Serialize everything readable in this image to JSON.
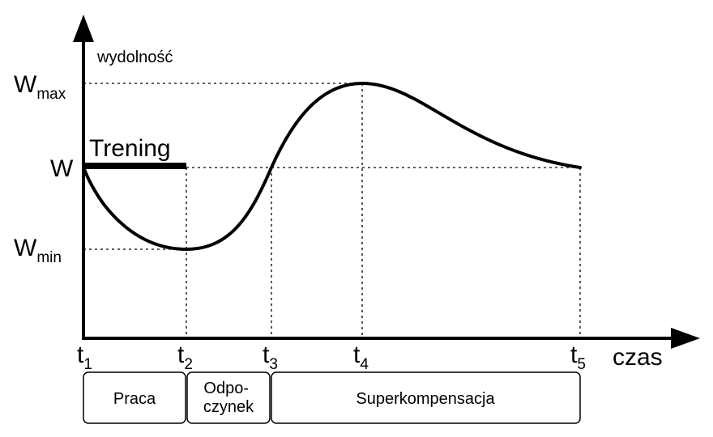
{
  "chart_data": {
    "type": "line",
    "ylabel": "wydolność",
    "xlabel": "czas",
    "y_levels": [
      {
        "key": "W",
        "sub": "max"
      },
      {
        "key": "W",
        "sub": ""
      },
      {
        "key": "W",
        "sub": "min"
      }
    ],
    "x_ticks": [
      {
        "key": "t",
        "sub": "1"
      },
      {
        "key": "t",
        "sub": "2"
      },
      {
        "key": "t",
        "sub": "3"
      },
      {
        "key": "t",
        "sub": "4"
      },
      {
        "key": "t",
        "sub": "5"
      }
    ],
    "training_label": "Trening",
    "phases": [
      {
        "line1": "Praca",
        "line2": ""
      },
      {
        "line1": "Odpo-",
        "line2": "czynek"
      },
      {
        "line1": "Superkompensacja",
        "line2": ""
      }
    ],
    "colors": {
      "line": "#000000",
      "guides": "#000000"
    }
  }
}
